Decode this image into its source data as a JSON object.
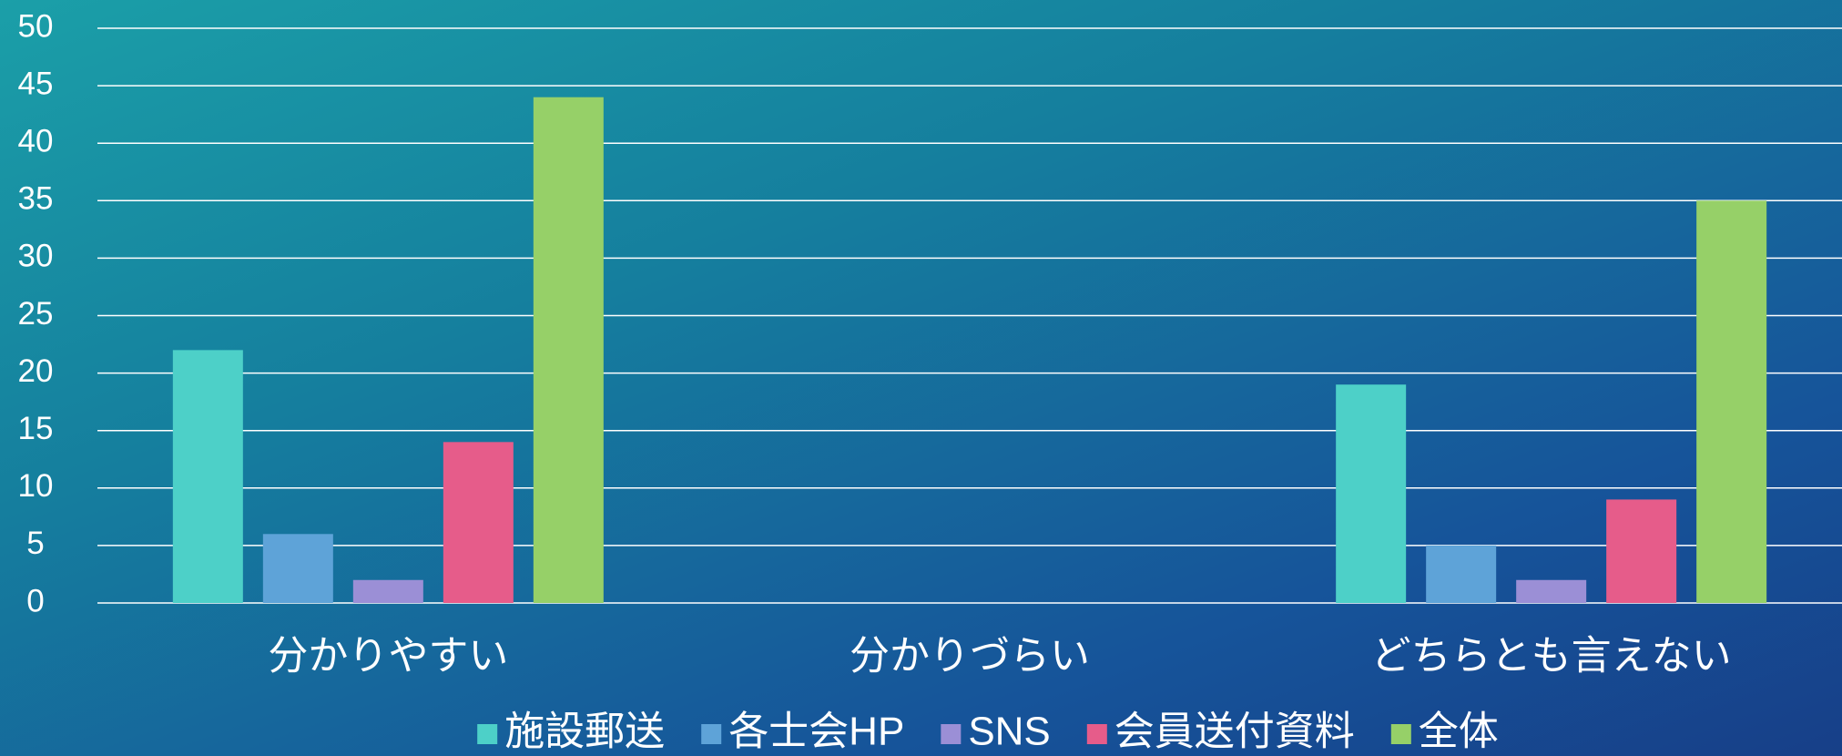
{
  "chart_data": {
    "type": "bar",
    "categories": [
      "分かりやすい",
      "分かりづらい",
      "どちらとも言えない"
    ],
    "series": [
      {
        "name": "施設郵送",
        "color": "#4dd0c8",
        "values": [
          22,
          0,
          19
        ]
      },
      {
        "name": "各士会HP",
        "color": "#5ea3d8",
        "values": [
          6,
          0,
          5
        ]
      },
      {
        "name": "SNS",
        "color": "#9b8fd6",
        "values": [
          2,
          0,
          2
        ]
      },
      {
        "name": "会員送付資料",
        "color": "#e65c8a",
        "values": [
          14,
          0,
          9
        ]
      },
      {
        "name": "全体",
        "color": "#96d068",
        "values": [
          44,
          0,
          35
        ]
      }
    ],
    "ylim": [
      0,
      50
    ],
    "yticks": [
      0,
      5,
      10,
      15,
      20,
      25,
      30,
      35,
      40,
      45,
      50
    ],
    "grid": true,
    "legend": "bottom"
  }
}
